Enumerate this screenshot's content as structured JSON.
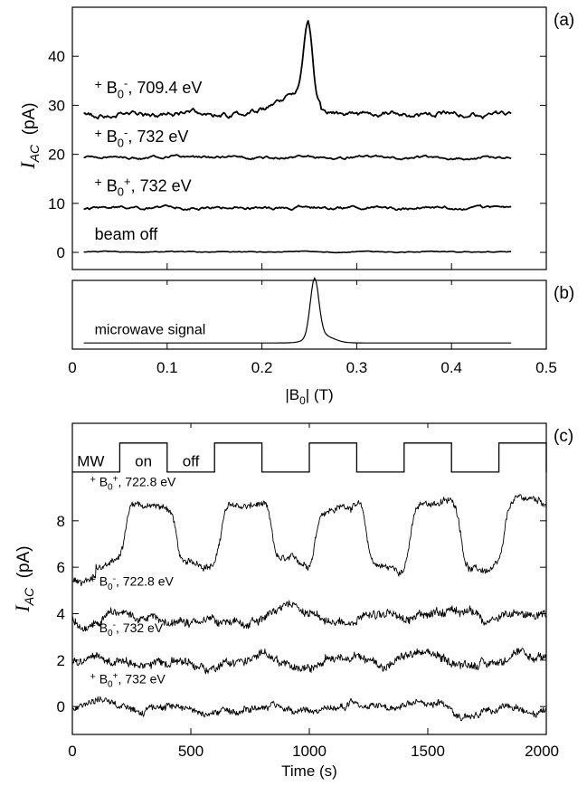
{
  "chart_data": [
    {
      "panel_label": "(a)",
      "type": "line",
      "ylabel_main": "I",
      "ylabel_sub": "AC",
      "ylabel_unit": "(pA)",
      "xlim": [
        0,
        0.5
      ],
      "ylim": [
        -3.5,
        50
      ],
      "ytick_values": [
        0,
        10,
        20,
        30,
        40
      ],
      "ytick_labels": [
        "0",
        "10",
        "20",
        "30",
        "40"
      ],
      "x_start": 0.012,
      "x_end": 0.463,
      "series": [
        {
          "name_prefix": "+ B",
          "name_sub": "0",
          "name_sup": "-",
          "name_suffix": ", 709.4 eV",
          "label_at": [
            0.012,
            32.5
          ],
          "baseline": 28.2,
          "wobble": 0.75,
          "seed": 3,
          "features": [
            {
              "kind": "gauss",
              "x": 0.2485,
              "height": 16.5,
              "width": 0.0045
            },
            {
              "kind": "gauss",
              "x": 0.233,
              "height": 3.2,
              "width": 0.011
            },
            {
              "kind": "ramp",
              "from": 0.18,
              "to": 0.228,
              "delta": 1.5
            }
          ],
          "points": [
            [
              0.012,
              28.0
            ],
            [
              0.05,
              28.6
            ],
            [
              0.1,
              28.2
            ],
            [
              0.15,
              28.5
            ],
            [
              0.2,
              28.6
            ],
            [
              0.23,
              32.0
            ],
            [
              0.2485,
              45.5
            ],
            [
              0.26,
              30.5
            ],
            [
              0.3,
              28.8
            ],
            [
              0.35,
              29.2
            ],
            [
              0.4,
              28.4
            ],
            [
              0.463,
              28.9
            ]
          ]
        },
        {
          "name_prefix": "+ B",
          "name_sub": "0",
          "name_sup": "-",
          "name_suffix": ", 732 eV",
          "label_at": [
            0.012,
            22.5
          ],
          "baseline": 19.4,
          "wobble": 0.35,
          "seed": 5,
          "features": [],
          "points": [
            [
              0.012,
              19.5
            ],
            [
              0.1,
              19.3
            ],
            [
              0.2,
              19.6
            ],
            [
              0.3,
              19.4
            ],
            [
              0.4,
              19.2
            ],
            [
              0.463,
              19.3
            ]
          ]
        },
        {
          "name_prefix": "+ B",
          "name_sub": "0",
          "name_sup": "+",
          "name_suffix": ", 732 eV",
          "label_at": [
            0.012,
            12.5
          ],
          "baseline": 9.1,
          "wobble": 0.4,
          "seed": 11,
          "features": [],
          "points": [
            [
              0.012,
              9.0
            ],
            [
              0.1,
              9.3
            ],
            [
              0.2,
              9.0
            ],
            [
              0.3,
              9.5
            ],
            [
              0.4,
              9.1
            ],
            [
              0.463,
              8.9
            ]
          ]
        },
        {
          "name_prefix": "",
          "name_sub": "",
          "name_sup": "",
          "name_suffix": "beam off",
          "label_at": [
            0.012,
            2.6
          ],
          "baseline": 0.1,
          "wobble": 0.12,
          "seed": 17,
          "features": [],
          "points": [
            [
              0.012,
              0.1
            ],
            [
              0.2,
              0.0
            ],
            [
              0.463,
              0.1
            ]
          ]
        }
      ]
    },
    {
      "panel_label": "(b)",
      "type": "line",
      "xlim": [
        0,
        0.5
      ],
      "ylim": [
        0,
        1
      ],
      "series": [
        {
          "name": "microwave signal",
          "label_at": [
            0.012,
            0.22
          ],
          "points": [
            [
              0.012,
              0.08
            ],
            [
              0.2,
              0.1
            ],
            [
              0.235,
              0.18
            ],
            [
              0.2555,
              0.93
            ],
            [
              0.275,
              0.2
            ],
            [
              0.32,
              0.11
            ],
            [
              0.463,
              0.09
            ]
          ]
        }
      ]
    },
    {
      "panel_label": "(c)",
      "type": "line",
      "xlabel": "Time (s)",
      "ylabel_main": "I",
      "ylabel_sub": "AC",
      "ylabel_unit": "(pA)",
      "xlim": [
        0,
        2000
      ],
      "ylim": [
        -1.2,
        12.2
      ],
      "ytick_values": [
        0,
        2,
        4,
        6,
        8
      ],
      "ytick_labels": [
        "0",
        "2",
        "4",
        "6",
        "8"
      ],
      "xtick_values": [
        0,
        500,
        1000,
        1500,
        2000
      ],
      "xtick_labels": [
        "0",
        "500",
        "1000",
        "1500",
        "2000"
      ],
      "mw_trace": {
        "label": "MW",
        "on_label": "on",
        "off_label": "off",
        "low_level": 10.1,
        "high_level": 11.35,
        "on_intervals": [
          [
            200,
            400
          ],
          [
            600,
            800
          ],
          [
            1000,
            1200
          ],
          [
            1400,
            1600
          ],
          [
            1800,
            2000
          ]
        ]
      },
      "series": [
        {
          "name_prefix": "+ B",
          "name_sub": "0",
          "name_sup": "+",
          "name_suffix": ", 722.8 eV",
          "label_at": [
            120,
            9.5
          ],
          "baseline": 6.0,
          "modulated_high": 8.7,
          "noise": 0.22,
          "seed": 23,
          "points": [
            [
              0,
              5.6
            ],
            [
              150,
              6.0
            ],
            [
              230,
              8.7
            ],
            [
              400,
              8.6
            ],
            [
              500,
              6.0
            ],
            [
              650,
              8.9
            ],
            [
              800,
              8.8
            ],
            [
              1000,
              6.0
            ],
            [
              1050,
              9.0
            ],
            [
              1200,
              8.7
            ],
            [
              1400,
              6.0
            ],
            [
              1450,
              8.7
            ],
            [
              1600,
              5.8
            ],
            [
              1850,
              8.8
            ],
            [
              2000,
              8.4
            ]
          ]
        },
        {
          "name_prefix": "+ B",
          "name_sub": "0",
          "name_sup": "-",
          "name_suffix": ", 722.8 eV",
          "label_at": [
            120,
            5.2
          ],
          "baseline": 3.8,
          "noise": 0.28,
          "seed": 29,
          "points": [
            [
              0,
              4.3
            ],
            [
              200,
              3.9
            ],
            [
              400,
              3.6
            ],
            [
              600,
              4.0
            ],
            [
              800,
              3.7
            ],
            [
              1000,
              4.0
            ],
            [
              1200,
              3.9
            ],
            [
              1400,
              3.7
            ],
            [
              1600,
              3.5
            ],
            [
              1800,
              3.6
            ],
            [
              2000,
              3.5
            ]
          ]
        },
        {
          "name_prefix": "+ B",
          "name_sub": "0",
          "name_sup": "-",
          "name_suffix": ", 732 eV",
          "label_at": [
            120,
            3.2
          ],
          "baseline": 2.0,
          "noise": 0.28,
          "seed": 31,
          "points": [
            [
              0,
              2.0
            ],
            [
              200,
              2.2
            ],
            [
              400,
              1.8
            ],
            [
              600,
              2.2
            ],
            [
              800,
              1.9
            ],
            [
              1000,
              2.5
            ],
            [
              1200,
              2.1
            ],
            [
              1400,
              1.9
            ],
            [
              1600,
              2.2
            ],
            [
              1800,
              2.3
            ],
            [
              2000,
              2.0
            ]
          ]
        },
        {
          "name_prefix": "+ B",
          "name_sub": "0",
          "name_sup": "+",
          "name_suffix": ", 732 eV",
          "label_at": [
            120,
            1.0
          ],
          "baseline": 0.0,
          "noise": 0.22,
          "seed": 37,
          "points": [
            [
              0,
              0.1
            ],
            [
              200,
              0.0
            ],
            [
              400,
              -0.2
            ],
            [
              600,
              0.1
            ],
            [
              800,
              -0.1
            ],
            [
              1000,
              0.0
            ],
            [
              1200,
              -0.1
            ],
            [
              1400,
              0.1
            ],
            [
              1600,
              -0.1
            ],
            [
              1800,
              0.2
            ],
            [
              2000,
              0.0
            ]
          ]
        }
      ]
    }
  ],
  "shared_axis_ab": {
    "xlabel_prefix": "|B",
    "xlabel_sub": "0",
    "xlabel_suffix": "| (T)",
    "xtick_values": [
      0,
      0.1,
      0.2,
      0.3,
      0.4,
      0.5
    ],
    "xtick_labels": [
      "0",
      "0.1",
      "0.2",
      "0.3",
      "0.4",
      "0.5"
    ]
  }
}
